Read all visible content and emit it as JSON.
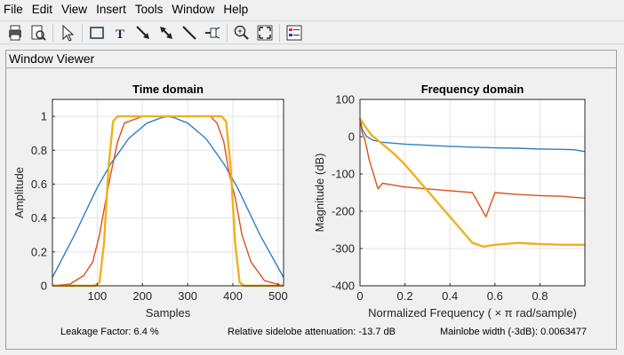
{
  "menu": [
    "File",
    "Edit",
    "View",
    "Insert",
    "Tools",
    "Window",
    "Help"
  ],
  "toolbar": {
    "buttons": [
      {
        "name": "print-icon"
      },
      {
        "name": "print-preview-icon"
      },
      {
        "sep": true
      },
      {
        "name": "select-arrow-icon"
      },
      {
        "sep": true
      },
      {
        "name": "rectangle-icon"
      },
      {
        "name": "text-icon"
      },
      {
        "name": "arrow-icon"
      },
      {
        "name": "double-arrow-icon"
      },
      {
        "name": "line-icon"
      },
      {
        "name": "pin-icon"
      },
      {
        "sep": true
      },
      {
        "name": "zoom-in-icon"
      },
      {
        "name": "full-view-icon"
      },
      {
        "sep": true
      },
      {
        "name": "legend-icon"
      }
    ]
  },
  "panel": {
    "title": "Window Viewer"
  },
  "colors": {
    "blue": "#2f7fc1",
    "orange": "#d95319",
    "yellow": "#edb120"
  },
  "footer": {
    "leakage": "Leakage Factor: 6.4 %",
    "sidelobe": "Relative sidelobe attenuation: -13.7 dB",
    "mainlobe": "Mainlobe width (-3dB): 0.0063477"
  },
  "chart_data": [
    {
      "type": "line",
      "title": "Time domain",
      "xlabel": "Samples",
      "ylabel": "Amplitude",
      "xlim": [
        1,
        512
      ],
      "ylim": [
        0,
        1.1
      ],
      "xticks": [
        100,
        200,
        300,
        400,
        500
      ],
      "yticks": [
        0,
        0.2,
        0.4,
        0.6,
        0.8,
        1
      ],
      "ytick_labels": [
        "0",
        "0.2",
        "0.4",
        "0.6",
        "0.8",
        "1"
      ],
      "grid": true,
      "series": [
        {
          "color": "blue",
          "x": [
            1,
            50,
            100,
            130,
            170,
            210,
            240,
            256,
            272,
            300,
            340,
            380,
            410,
            460,
            512
          ],
          "y": [
            0.05,
            0.3,
            0.58,
            0.72,
            0.87,
            0.96,
            0.99,
            1.0,
            0.99,
            0.96,
            0.87,
            0.72,
            0.58,
            0.3,
            0.05
          ]
        },
        {
          "color": "orange",
          "x": [
            1,
            40,
            70,
            90,
            105,
            120,
            130,
            145,
            160,
            200,
            350,
            365,
            380,
            392,
            405,
            420,
            440,
            470,
            512
          ],
          "y": [
            0,
            0.01,
            0.06,
            0.14,
            0.3,
            0.52,
            0.66,
            0.85,
            0.96,
            1.0,
            1.0,
            0.96,
            0.85,
            0.66,
            0.52,
            0.3,
            0.14,
            0.03,
            0
          ]
        },
        {
          "color": "yellow",
          "x": [
            1,
            95,
            105,
            115,
            125,
            135,
            145,
            160,
            360,
            375,
            385,
            395,
            405,
            415,
            425,
            512
          ],
          "y": [
            0,
            0,
            0.02,
            0.25,
            0.7,
            0.97,
            1.0,
            1.0,
            1.0,
            1.0,
            0.97,
            0.7,
            0.25,
            0.02,
            0,
            0
          ]
        }
      ]
    },
    {
      "type": "line",
      "title": "Frequency domain",
      "xlabel": "Normalized Frequency  ( × π rad/sample)",
      "ylabel": "Magnitude (dB)",
      "xlim": [
        0,
        1
      ],
      "ylim": [
        -400,
        100
      ],
      "xticks": [
        0,
        0.2,
        0.4,
        0.6,
        0.8
      ],
      "xtick_labels": [
        "0",
        "0.2",
        "0.4",
        "0.6",
        "0.8"
      ],
      "yticks": [
        -400,
        -300,
        -200,
        -100,
        0,
        100
      ],
      "grid": true,
      "series": [
        {
          "color": "blue",
          "x": [
            0,
            0.01,
            0.03,
            0.06,
            0.1,
            0.2,
            0.3,
            0.4,
            0.5,
            0.6,
            0.7,
            0.8,
            0.9,
            0.95,
            1.0
          ],
          "y": [
            48,
            20,
            0,
            -10,
            -15,
            -20,
            -23,
            -26,
            -28,
            -30,
            -31,
            -33,
            -34,
            -35,
            -40
          ]
        },
        {
          "color": "orange",
          "x": [
            0,
            0.01,
            0.02,
            0.03,
            0.04,
            0.05,
            0.06,
            0.07,
            0.08,
            0.1,
            0.15,
            0.2,
            0.3,
            0.4,
            0.5,
            0.56,
            0.6,
            0.7,
            0.8,
            0.9,
            1.0
          ],
          "y": [
            48,
            10,
            -5,
            -30,
            -60,
            -80,
            -100,
            -120,
            -140,
            -125,
            -130,
            -135,
            -140,
            -145,
            -150,
            -215,
            -150,
            -155,
            -158,
            -160,
            -165
          ]
        },
        {
          "color": "yellow",
          "x": [
            0,
            0.02,
            0.05,
            0.1,
            0.15,
            0.2,
            0.3,
            0.4,
            0.45,
            0.5,
            0.55,
            0.6,
            0.7,
            0.8,
            0.9,
            1.0
          ],
          "y": [
            48,
            30,
            5,
            -20,
            -45,
            -75,
            -145,
            -215,
            -250,
            -285,
            -295,
            -290,
            -285,
            -288,
            -290,
            -290
          ]
        }
      ]
    }
  ]
}
